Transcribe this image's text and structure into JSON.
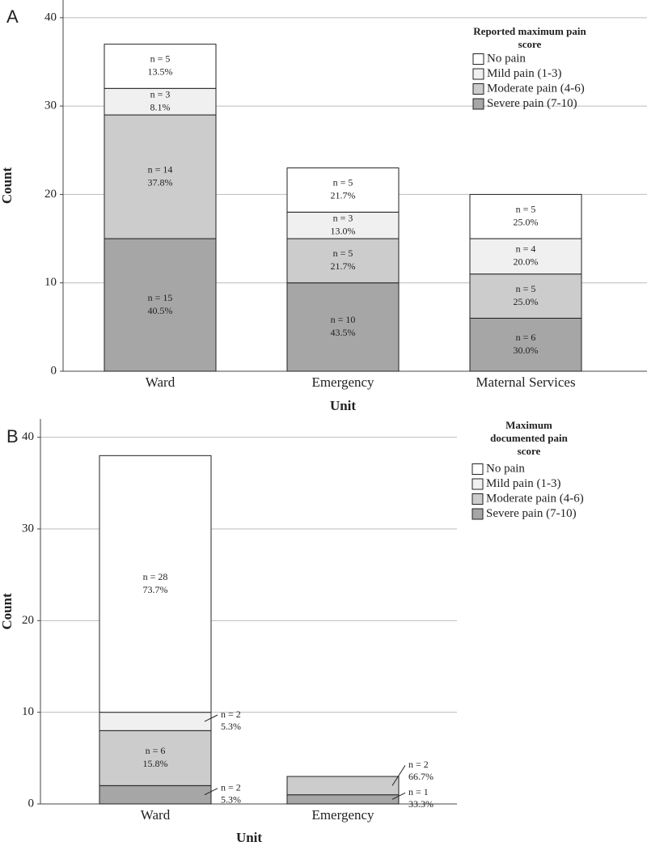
{
  "chart_data": [
    {
      "type": "stacked_bar",
      "panel": "A",
      "ylabel": "Count",
      "xlabel": "Unit",
      "legend_title": [
        "Reported maximum pain",
        "score"
      ],
      "categories": [
        "Ward",
        "Emergency",
        "Maternal Services"
      ],
      "series": [
        {
          "name": "Severe pain (7-10)",
          "color": "#a6a6a6",
          "values": [
            15,
            10,
            6
          ],
          "value_labels": [
            "n = 15",
            "n = 10",
            "n = 6"
          ],
          "percent_labels": [
            "40.5%",
            "43.5%",
            "30.0%"
          ]
        },
        {
          "name": "Moderate pain (4-6)",
          "color": "#cccccc",
          "values": [
            14,
            5,
            5
          ],
          "value_labels": [
            "n = 14",
            "n = 5",
            "n = 5"
          ],
          "percent_labels": [
            "37.8%",
            "21.7%",
            "25.0%"
          ]
        },
        {
          "name": "Mild pain (1-3)",
          "color": "#f0f0f0",
          "values": [
            3,
            3,
            4
          ],
          "value_labels": [
            "n = 3",
            "n = 3",
            "n = 4"
          ],
          "percent_labels": [
            "8.1%",
            "13.0%",
            "20.0%"
          ]
        },
        {
          "name": "No pain",
          "color": "#ffffff",
          "values": [
            5,
            5,
            5
          ],
          "value_labels": [
            "n = 5",
            "n = 5",
            "n = 5"
          ],
          "percent_labels": [
            "13.5%",
            "21.7%",
            "25.0%"
          ]
        }
      ],
      "ylim": [
        0,
        42
      ],
      "yticks": [
        0,
        10,
        20,
        30,
        40
      ],
      "grid": true
    },
    {
      "type": "stacked_bar",
      "panel": "B",
      "ylabel": "Count",
      "xlabel": "Unit",
      "legend_title": [
        "Maximum",
        "documented pain",
        "score"
      ],
      "categories": [
        "Ward",
        "Emergency"
      ],
      "series": [
        {
          "name": "Severe pain (7-10)",
          "color": "#a6a6a6",
          "values": [
            2,
            1
          ],
          "value_labels": [
            "n = 2",
            "n = 1"
          ],
          "percent_labels": [
            "5.3%",
            "33.3%"
          ]
        },
        {
          "name": "Moderate pain (4-6)",
          "color": "#cccccc",
          "values": [
            6,
            2
          ],
          "value_labels": [
            "n = 6",
            "n = 2"
          ],
          "percent_labels": [
            "15.8%",
            "66.7%"
          ]
        },
        {
          "name": "Mild pain (1-3)",
          "color": "#f0f0f0",
          "values": [
            2,
            null
          ],
          "value_labels": [
            "n = 2",
            null
          ],
          "percent_labels": [
            "5.3%",
            null
          ]
        },
        {
          "name": "No pain",
          "color": "#ffffff",
          "values": [
            28,
            null
          ],
          "value_labels": [
            "n = 28",
            null
          ],
          "percent_labels": [
            "73.7%",
            null
          ]
        }
      ],
      "ylim": [
        0,
        42
      ],
      "yticks": [
        0,
        10,
        20,
        30,
        40
      ],
      "grid": true
    }
  ]
}
